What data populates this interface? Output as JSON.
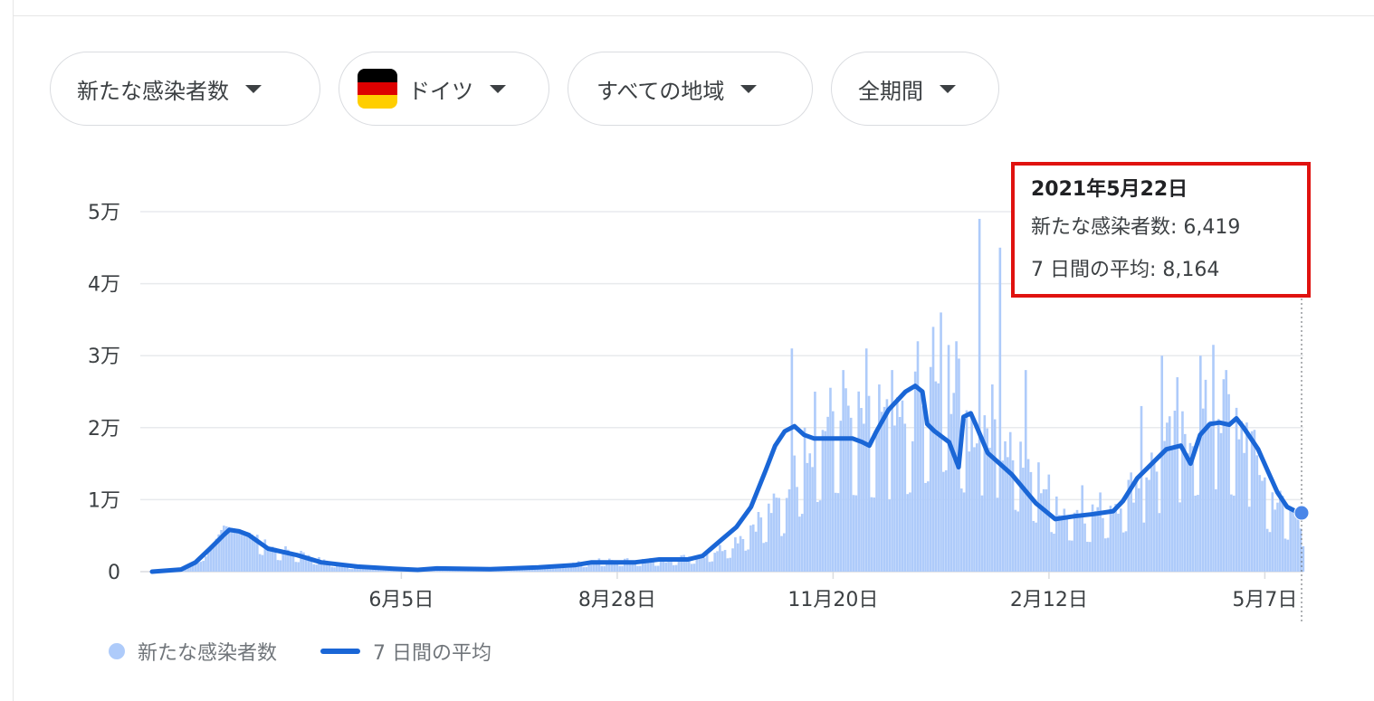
{
  "filters": [
    {
      "label": "新たな感染者数"
    },
    {
      "label": "ドイツ",
      "flag": [
        "#000000",
        "#dd0000",
        "#ffce00"
      ]
    },
    {
      "label": "すべての地域"
    },
    {
      "label": "全期間"
    }
  ],
  "tooltip": {
    "date": "2021年5月22日",
    "cases_line": "新たな感染者数: 6,419",
    "avg_line": "7 日間の平均: 8,164"
  },
  "legend": {
    "cases": "新たな感染者数",
    "avg": "7 日間の平均"
  },
  "colors": {
    "bars": "#aecbfa",
    "line": "#1a66d6",
    "grid": "#e8eaed",
    "highlight": "#e0120f"
  },
  "chart_data": {
    "type": "bar",
    "x_label_ticks": [
      "6月5日",
      "8月28日",
      "11月20日",
      "2月12日",
      "5月7日"
    ],
    "x_tick_days": [
      97,
      181,
      265,
      349,
      433
    ],
    "y_ticks": [
      "0",
      "1万",
      "2万",
      "3万",
      "4万",
      "5万"
    ],
    "y_tick_values": [
      0,
      10000,
      20000,
      30000,
      40000,
      50000
    ],
    "ylim": [
      0,
      50000
    ],
    "x_range_days": [
      0,
      448
    ],
    "series": [
      {
        "name": "新たな感染者数",
        "type": "bar",
        "keypoints": [
          [
            0,
            0
          ],
          [
            10,
            200
          ],
          [
            20,
            1500
          ],
          [
            28,
            6400
          ],
          [
            38,
            5400
          ],
          [
            48,
            3000
          ],
          [
            60,
            2200
          ],
          [
            75,
            700
          ],
          [
            100,
            300
          ],
          [
            120,
            500
          ],
          [
            140,
            400
          ],
          [
            160,
            900
          ],
          [
            175,
            1400
          ],
          [
            200,
            1500
          ],
          [
            215,
            2200
          ],
          [
            225,
            3500
          ],
          [
            235,
            6500
          ],
          [
            245,
            9000
          ],
          [
            255,
            16000
          ],
          [
            265,
            20000
          ],
          [
            290,
            18000
          ],
          [
            300,
            22000
          ],
          [
            310,
            26000
          ],
          [
            318,
            18000
          ],
          [
            326,
            20000
          ],
          [
            335,
            16000
          ],
          [
            345,
            12000
          ],
          [
            355,
            8000
          ],
          [
            365,
            7500
          ],
          [
            375,
            9000
          ],
          [
            385,
            12000
          ],
          [
            395,
            16000
          ],
          [
            405,
            19000
          ],
          [
            415,
            21000
          ],
          [
            425,
            18000
          ],
          [
            435,
            10000
          ],
          [
            448,
            6419
          ]
        ],
        "spikes": [
          [
            249,
            31000
          ],
          [
            254,
            20000
          ],
          [
            258,
            25000
          ],
          [
            269,
            28000
          ],
          [
            278,
            31000
          ],
          [
            283,
            26000
          ],
          [
            288,
            28000
          ],
          [
            298,
            32000
          ],
          [
            304,
            34000
          ],
          [
            307,
            36000
          ],
          [
            313,
            32000
          ],
          [
            322,
            49000
          ],
          [
            330,
            45000
          ],
          [
            340,
            28000
          ],
          [
            362,
            12000
          ],
          [
            369,
            11000
          ],
          [
            385,
            23000
          ],
          [
            393,
            30000
          ],
          [
            399,
            27000
          ],
          [
            408,
            30000
          ],
          [
            413,
            31500
          ],
          [
            418,
            28000
          ],
          [
            428,
            19500
          ]
        ]
      },
      {
        "name": "7 日間の平均",
        "type": "line",
        "points": [
          [
            0,
            0
          ],
          [
            12,
            300
          ],
          [
            18,
            1300
          ],
          [
            24,
            3200
          ],
          [
            30,
            5200
          ],
          [
            32,
            5800
          ],
          [
            36,
            5600
          ],
          [
            40,
            5100
          ],
          [
            48,
            3200
          ],
          [
            60,
            2300
          ],
          [
            70,
            1300
          ],
          [
            85,
            700
          ],
          [
            100,
            400
          ],
          [
            110,
            250
          ],
          [
            118,
            450
          ],
          [
            140,
            350
          ],
          [
            160,
            600
          ],
          [
            175,
            900
          ],
          [
            182,
            1300
          ],
          [
            200,
            1300
          ],
          [
            210,
            1700
          ],
          [
            222,
            1700
          ],
          [
            228,
            2200
          ],
          [
            236,
            4500
          ],
          [
            242,
            6200
          ],
          [
            248,
            9000
          ],
          [
            254,
            14000
          ],
          [
            258,
            17500
          ],
          [
            262,
            19500
          ],
          [
            266,
            20200
          ],
          [
            270,
            19000
          ],
          [
            274,
            18500
          ],
          [
            290,
            18500
          ],
          [
            294,
            18000
          ],
          [
            297,
            17500
          ],
          [
            300,
            19500
          ],
          [
            305,
            22500
          ],
          [
            312,
            25000
          ],
          [
            316,
            25800
          ],
          [
            319,
            25000
          ],
          [
            321,
            20500
          ],
          [
            324,
            19500
          ],
          [
            330,
            18000
          ],
          [
            334,
            14500
          ],
          [
            336,
            21500
          ],
          [
            339,
            22000
          ],
          [
            341,
            20500
          ],
          [
            346,
            16500
          ],
          [
            356,
            13500
          ],
          [
            366,
            9500
          ],
          [
            374,
            7300
          ],
          [
            382,
            7700
          ],
          [
            390,
            8000
          ],
          [
            398,
            8400
          ],
          [
            402,
            9800
          ],
          [
            408,
            13000
          ],
          [
            414,
            15000
          ],
          [
            420,
            17000
          ],
          [
            426,
            17500
          ],
          [
            430,
            15000
          ],
          [
            434,
            19000
          ],
          [
            438,
            20500
          ],
          [
            442,
            20700
          ],
          [
            446,
            20400
          ],
          [
            449,
            21300
          ],
          [
            452,
            20000
          ],
          [
            458,
            17000
          ],
          [
            462,
            14000
          ],
          [
            466,
            11000
          ],
          [
            470,
            9000
          ],
          [
            474,
            8300
          ],
          [
            476,
            8164
          ]
        ]
      }
    ],
    "highlight": {
      "date": "2021年5月22日",
      "cases": 6419,
      "avg": 8164
    }
  }
}
